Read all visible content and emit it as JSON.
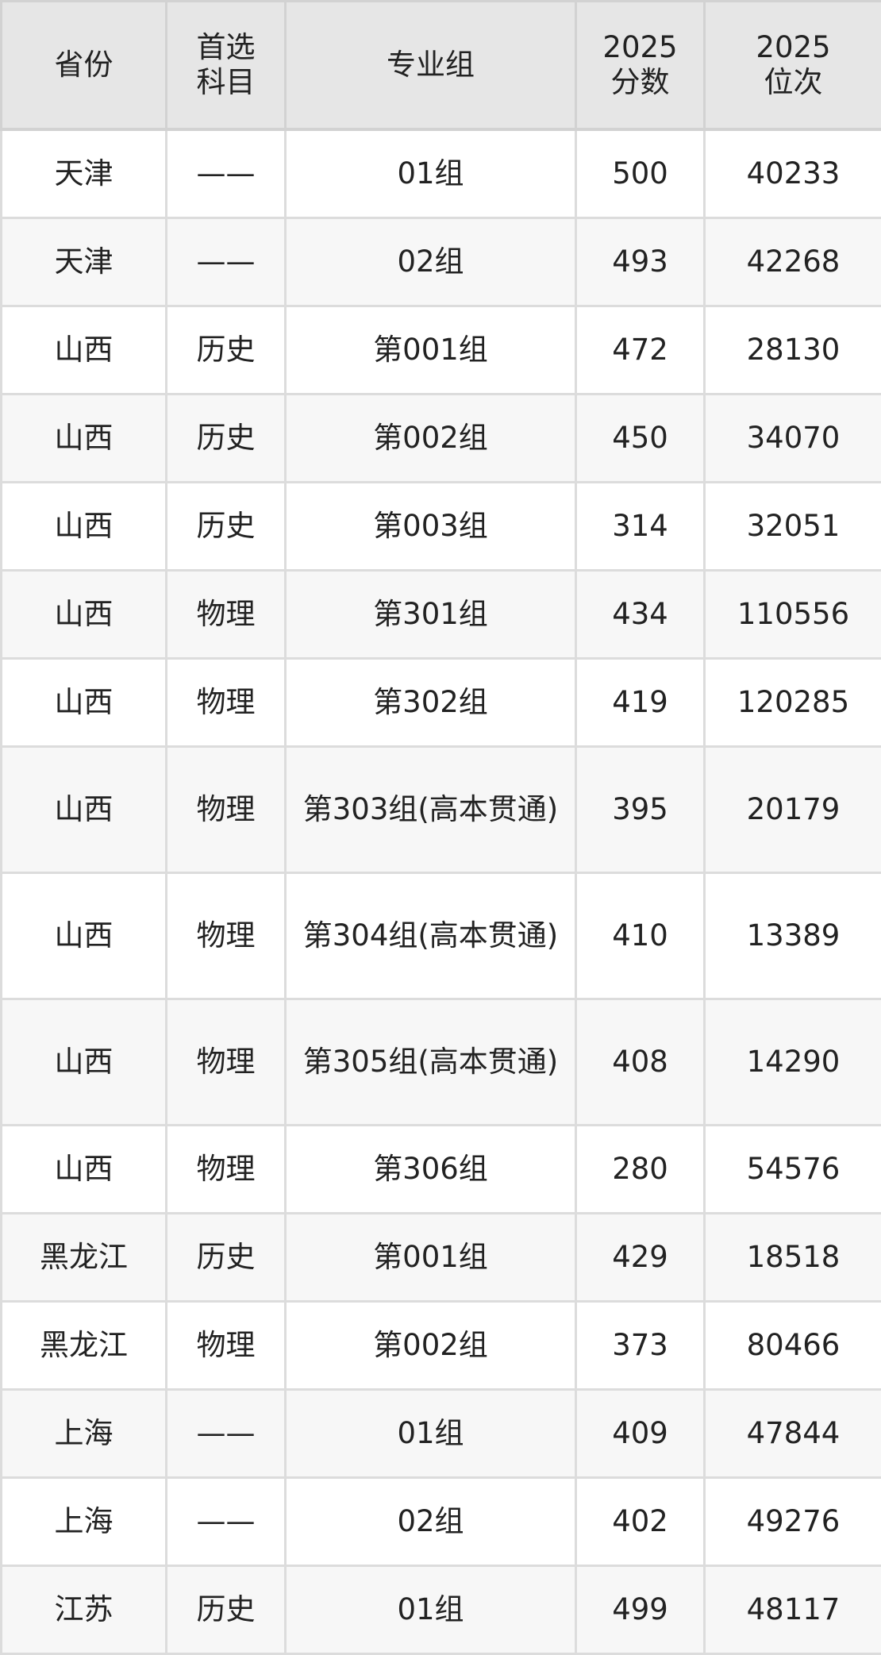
{
  "headers": [
    "省份",
    "首选\n科目",
    "专业组",
    "2025\n分数",
    "2025\n位次"
  ],
  "rows": [
    [
      "天津",
      "——",
      "01组",
      "500",
      "40233"
    ],
    [
      "天津",
      "——",
      "02组",
      "493",
      "42268"
    ],
    [
      "山西",
      "历史",
      "第001组",
      "472",
      "28130"
    ],
    [
      "山西",
      "历史",
      "第002组",
      "450",
      "34070"
    ],
    [
      "山西",
      "历史",
      "第003组",
      "314",
      "32051"
    ],
    [
      "山西",
      "物理",
      "第301组",
      "434",
      "110556"
    ],
    [
      "山西",
      "物理",
      "第302组",
      "419",
      "120285"
    ],
    [
      "山西",
      "物理",
      "第303组(高本贯通)",
      "395",
      "20179"
    ],
    [
      "山西",
      "物理",
      "第304组(高本贯通)",
      "410",
      "13389"
    ],
    [
      "山西",
      "物理",
      "第305组(高本贯通)",
      "408",
      "14290"
    ],
    [
      "山西",
      "物理",
      "第306组",
      "280",
      "54576"
    ],
    [
      "黑龙江",
      "历史",
      "第001组",
      "429",
      "18518"
    ],
    [
      "黑龙江",
      "物理",
      "第002组",
      "373",
      "80466"
    ],
    [
      "上海",
      "——",
      "01组",
      "409",
      "47844"
    ],
    [
      "上海",
      "——",
      "02组",
      "402",
      "49276"
    ],
    [
      "江苏",
      "历史",
      "01组",
      "499",
      "48117"
    ]
  ]
}
